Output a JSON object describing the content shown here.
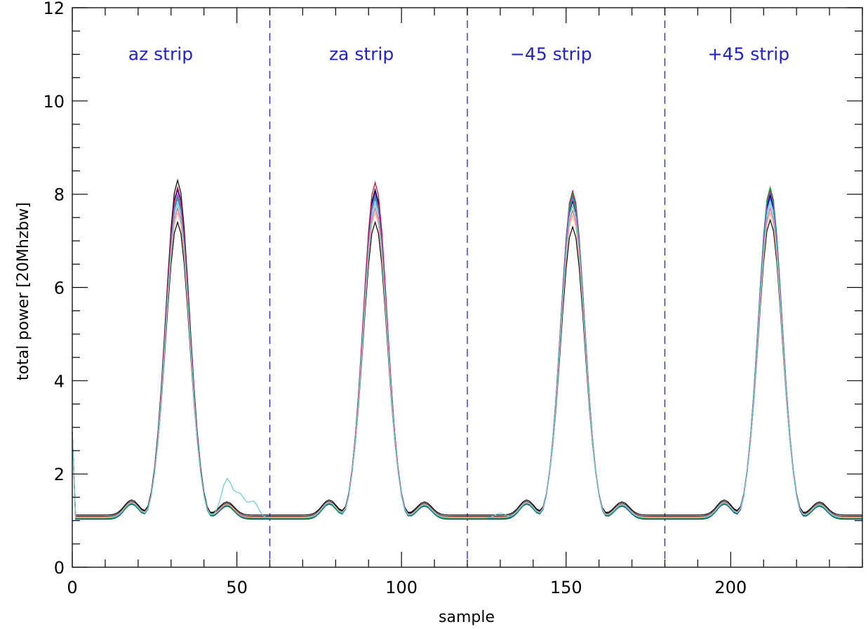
{
  "chart_data": {
    "type": "line",
    "title": "",
    "xlabel": "sample",
    "ylabel": "total power [20Mhzbw]",
    "xlim": [
      0,
      240
    ],
    "ylim": [
      0,
      12
    ],
    "x_ticks": [
      0,
      50,
      100,
      150,
      200
    ],
    "y_ticks": [
      0,
      2,
      4,
      6,
      8,
      10,
      12
    ],
    "grid": false,
    "strip_boundaries": [
      60,
      120,
      180
    ],
    "strip_labels": [
      {
        "text": "az strip",
        "x": 17,
        "y": 11
      },
      {
        "text": "za strip",
        "x": 78,
        "y": 11
      },
      {
        "text": "−45 strip",
        "x": 133,
        "y": 11
      },
      {
        "text": "+45 strip",
        "x": 193,
        "y": 11
      }
    ],
    "peak_centers": [
      32,
      92,
      152,
      212
    ],
    "series": [
      {
        "color": "#000000",
        "peaks": [
          8.3,
          8.1,
          7.85,
          8.0
        ],
        "baseline": 1.09,
        "spike_start": 2.9
      },
      {
        "color": "#000000",
        "peaks": [
          7.4,
          7.4,
          7.3,
          7.45
        ],
        "baseline": 1.12,
        "spike_start": 2.9
      },
      {
        "color": "#0000cc",
        "peaks": [
          8.1,
          8.05,
          8.0,
          7.95
        ],
        "baseline": 1.03,
        "spike_start": 2.9
      },
      {
        "color": "#cc0033",
        "peaks": [
          8.15,
          8.25,
          8.07,
          8.1
        ],
        "baseline": 1.05,
        "spike_start": 2.9
      },
      {
        "color": "#00aa33",
        "peaks": [
          7.95,
          7.95,
          8.02,
          8.15
        ],
        "baseline": 1.04,
        "spike_start": 2.9
      },
      {
        "color": "#3399cc",
        "peaks": [
          7.9,
          7.9,
          7.9,
          7.9
        ],
        "baseline": 1.06,
        "spike_start": 2.9
      },
      {
        "color": "#9955cc",
        "peaks": [
          8.0,
          8.0,
          7.95,
          8.05
        ],
        "baseline": 1.07,
        "spike_start": 2.9
      },
      {
        "color": "#cc6699",
        "peaks": [
          7.7,
          7.7,
          7.65,
          7.7
        ],
        "baseline": 1.08,
        "spike_start": 2.9
      },
      {
        "color": "#ffaa88",
        "peaks": [
          7.6,
          7.6,
          7.55,
          7.6
        ],
        "baseline": 1.07,
        "spike_start": 2.9
      },
      {
        "color": "#66cccc",
        "peaks": [
          7.8,
          7.8,
          7.75,
          7.8
        ],
        "baseline": 1.06,
        "spike_start": 2.9,
        "bumps": [
          {
            "x": 47,
            "dy": 0.55
          },
          {
            "x": 51,
            "dy": 0.45
          },
          {
            "x": 55,
            "dy": 0.35
          },
          {
            "x": 130,
            "dy": 0.1
          }
        ]
      }
    ],
    "colors": {
      "strip_text": "#2222cc",
      "divider": "#2222cc",
      "axes": "#000000"
    }
  }
}
